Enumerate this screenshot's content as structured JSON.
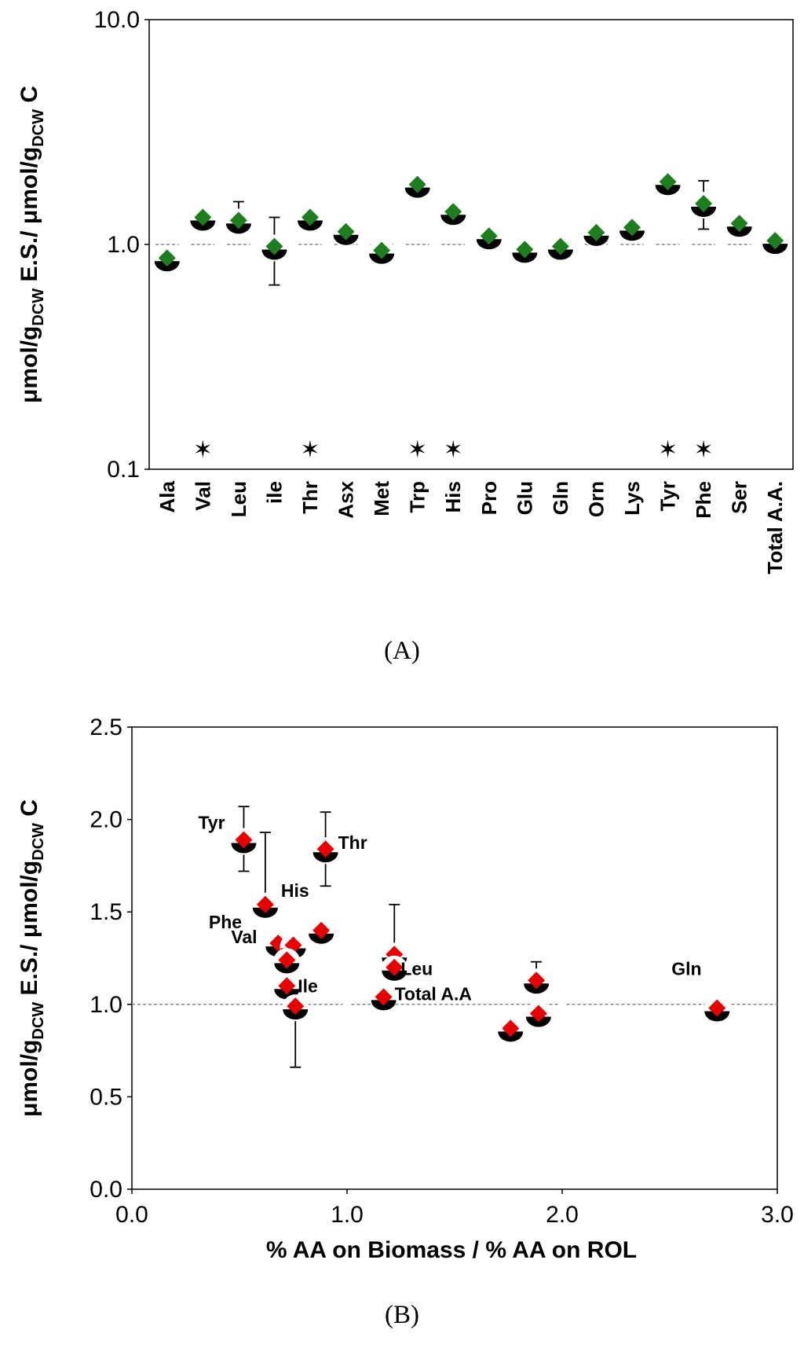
{
  "chart_data": [
    {
      "type": "scatter",
      "caption": "(A)",
      "ylabel_parts": [
        "μmol/g",
        "DCW",
        " E.S./ μmol/g",
        "DCW",
        " C"
      ],
      "yscale": "log",
      "ylim": [
        0.1,
        10.0
      ],
      "yticks": [
        "0.1",
        "1.0",
        "10.0"
      ],
      "ytick_values": [
        0.1,
        1.0,
        10.0
      ],
      "reference_line": 1.0,
      "marker_color": "#1e7d1e",
      "categories": [
        "Ala",
        "Val",
        "Leu",
        "ile",
        "Thr",
        "Asx",
        "Met",
        "Trp",
        "His",
        "Pro",
        "Glu",
        "Gln",
        "Orn",
        "Lys",
        "Tyr",
        "Phe",
        "Ser",
        "Total A.A."
      ],
      "values": [
        0.87,
        1.32,
        1.28,
        0.98,
        1.32,
        1.14,
        0.94,
        1.85,
        1.4,
        1.09,
        0.95,
        0.98,
        1.13,
        1.19,
        1.9,
        1.52,
        1.24,
        1.04
      ],
      "error_upper": [
        null,
        null,
        1.55,
        1.32,
        null,
        null,
        null,
        null,
        null,
        null,
        null,
        null,
        null,
        null,
        null,
        1.92,
        null,
        null
      ],
      "error_lower": [
        null,
        null,
        null,
        0.66,
        null,
        null,
        null,
        null,
        null,
        null,
        null,
        null,
        null,
        null,
        null,
        1.17,
        null,
        null
      ],
      "significance_marker": "✶",
      "significant": [
        "Val",
        "Thr",
        "Trp",
        "His",
        "Tyr",
        "Phe"
      ]
    },
    {
      "type": "scatter",
      "caption": "(B)",
      "ylabel_parts": [
        "μmol/g",
        "DCW",
        " E.S./ μmol/g",
        "DCW",
        " C"
      ],
      "xlabel": "% AA on Biomass / % AA on ROL",
      "xlim": [
        0.0,
        3.0
      ],
      "ylim": [
        0.0,
        2.5
      ],
      "xticks": [
        "0.0",
        "1.0",
        "2.0",
        "3.0"
      ],
      "xtick_values": [
        0.0,
        1.0,
        2.0,
        3.0
      ],
      "yticks": [
        "0.0",
        "0.5",
        "1.0",
        "1.5",
        "2.0",
        "2.5"
      ],
      "ytick_values": [
        0.0,
        0.5,
        1.0,
        1.5,
        2.0,
        2.5
      ],
      "reference_line": 1.0,
      "marker_color": "#e60000",
      "points": [
        {
          "x": 0.52,
          "y": 1.89,
          "label": "Tyr",
          "err_hi": 2.07,
          "err_lo": 1.72
        },
        {
          "x": 0.62,
          "y": 1.54,
          "label": "Phe",
          "err_hi": 1.93,
          "err_lo": null
        },
        {
          "x": 0.62,
          "y": 1.54,
          "label": "His",
          "err_hi": null,
          "err_lo": null
        },
        {
          "x": 0.9,
          "y": 1.84,
          "label": "Thr",
          "err_hi": 2.04,
          "err_lo": 1.64
        },
        {
          "x": 0.88,
          "y": 1.4,
          "label": "",
          "err_hi": null,
          "err_lo": null
        },
        {
          "x": 0.68,
          "y": 1.33,
          "label": "Val",
          "err_hi": null,
          "err_lo": null
        },
        {
          "x": 0.75,
          "y": 1.32,
          "label": "",
          "err_hi": null,
          "err_lo": null
        },
        {
          "x": 0.72,
          "y": 1.24,
          "label": "",
          "err_hi": null,
          "err_lo": 1.18
        },
        {
          "x": 0.72,
          "y": 1.1,
          "label": "Ile",
          "err_hi": null,
          "err_lo": null
        },
        {
          "x": 0.76,
          "y": 0.99,
          "label": "",
          "err_hi": null,
          "err_lo": 0.66
        },
        {
          "x": 1.22,
          "y": 1.27,
          "label": "Leu",
          "err_hi": 1.54,
          "err_lo": null
        },
        {
          "x": 1.22,
          "y": 1.2,
          "label": "",
          "err_hi": null,
          "err_lo": 1.14
        },
        {
          "x": 1.17,
          "y": 1.04,
          "label": "Total A.A",
          "err_hi": null,
          "err_lo": null
        },
        {
          "x": 1.76,
          "y": 0.87,
          "label": "",
          "err_hi": null,
          "err_lo": null
        },
        {
          "x": 1.88,
          "y": 1.13,
          "label": "",
          "err_hi": 1.23,
          "err_lo": null
        },
        {
          "x": 1.89,
          "y": 0.95,
          "label": "",
          "err_hi": null,
          "err_lo": null
        },
        {
          "x": 2.72,
          "y": 0.98,
          "label": "Gln",
          "err_hi": null,
          "err_lo": null
        }
      ]
    }
  ]
}
